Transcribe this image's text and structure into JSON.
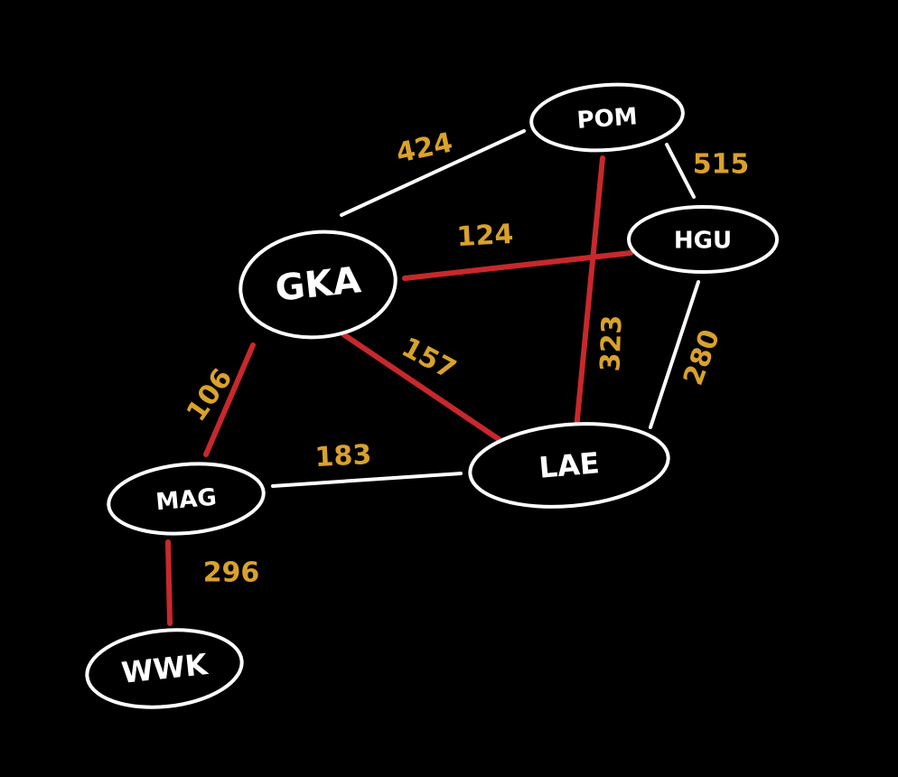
{
  "colors": {
    "background": "#000000",
    "node_outline": "#ffffff",
    "node_text": "#ffffff",
    "normal_edge": "#ffffff",
    "highlighted_edge": "#c8282c",
    "weight_text": "#d9a22b"
  },
  "nodes": [
    {
      "id": "POM",
      "label": "POM"
    },
    {
      "id": "HGU",
      "label": "HGU"
    },
    {
      "id": "GKA",
      "label": "GKA"
    },
    {
      "id": "LAE",
      "label": "LAE"
    },
    {
      "id": "MAG",
      "label": "MAG"
    },
    {
      "id": "WWK",
      "label": "WWK"
    }
  ],
  "edges": [
    {
      "from": "GKA",
      "to": "POM",
      "weight": "424",
      "highlighted": false
    },
    {
      "from": "POM",
      "to": "HGU",
      "weight": "515",
      "highlighted": false
    },
    {
      "from": "GKA",
      "to": "HGU",
      "weight": "124",
      "highlighted": true
    },
    {
      "from": "POM",
      "to": "LAE",
      "weight": "323",
      "highlighted": true
    },
    {
      "from": "HGU",
      "to": "LAE",
      "weight": "280",
      "highlighted": false
    },
    {
      "from": "GKA",
      "to": "LAE",
      "weight": "157",
      "highlighted": true
    },
    {
      "from": "GKA",
      "to": "MAG",
      "weight": "106",
      "highlighted": true
    },
    {
      "from": "MAG",
      "to": "LAE",
      "weight": "183",
      "highlighted": false
    },
    {
      "from": "MAG",
      "to": "WWK",
      "weight": "296",
      "highlighted": true
    }
  ]
}
